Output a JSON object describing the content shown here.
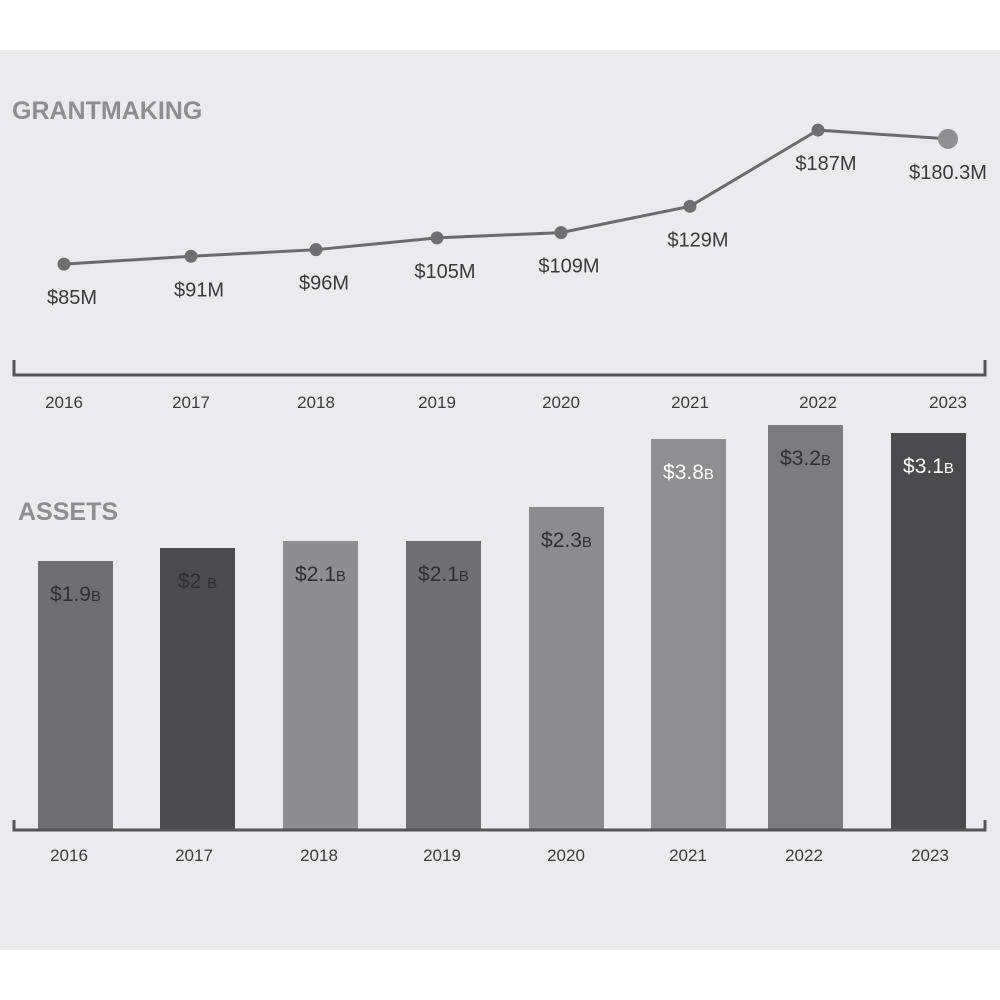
{
  "chart_data": [
    {
      "type": "line",
      "title": "GRANTMAKING",
      "categories": [
        "2016",
        "2017",
        "2018",
        "2019",
        "2020",
        "2021",
        "2022",
        "2023"
      ],
      "values": [
        85,
        91,
        96,
        105,
        109,
        129,
        187,
        180.3
      ],
      "labels": [
        "$85M",
        "$91M",
        "$96M",
        "$105M",
        "$109M",
        "$129M",
        "$187M",
        "$180.3M"
      ],
      "unit": "$M",
      "ylim": [
        60,
        200
      ],
      "grid": false,
      "line_color": "#6b6b6d"
    },
    {
      "type": "bar",
      "title": "ASSETS",
      "categories": [
        "2016",
        "2017",
        "2018",
        "2019",
        "2020",
        "2021",
        "2022",
        "2023"
      ],
      "values": [
        1.9,
        2,
        2.1,
        2.1,
        2.3,
        3.8,
        3.2,
        3.1
      ],
      "labels": [
        {
          "num": "$1.9",
          "unit": "B"
        },
        {
          "num": "$2 ",
          "unit": "B"
        },
        {
          "num": "$2.1",
          "unit": "B"
        },
        {
          "num": "$2.1",
          "unit": "B"
        },
        {
          "num": "$2.3",
          "unit": "B"
        },
        {
          "num": "$3.8",
          "unit": "B"
        },
        {
          "num": "$3.2",
          "unit": "B"
        },
        {
          "num": "$3.1",
          "unit": "B"
        }
      ],
      "unit": "$B",
      "grid": false,
      "bar_colors": [
        "#6f6f71",
        "#4b4b4d",
        "#8e8e90",
        "#707072",
        "#8c8c8e",
        "#8f8f91",
        "#7c7c7e",
        "#4b4b4d"
      ],
      "label_colors": [
        "#2f2f31",
        "#2f2f31",
        "#2f2f31",
        "#2f2f31",
        "#2f2f31",
        "#ffffff",
        "#2f2f31",
        "#ffffff"
      ]
    }
  ]
}
